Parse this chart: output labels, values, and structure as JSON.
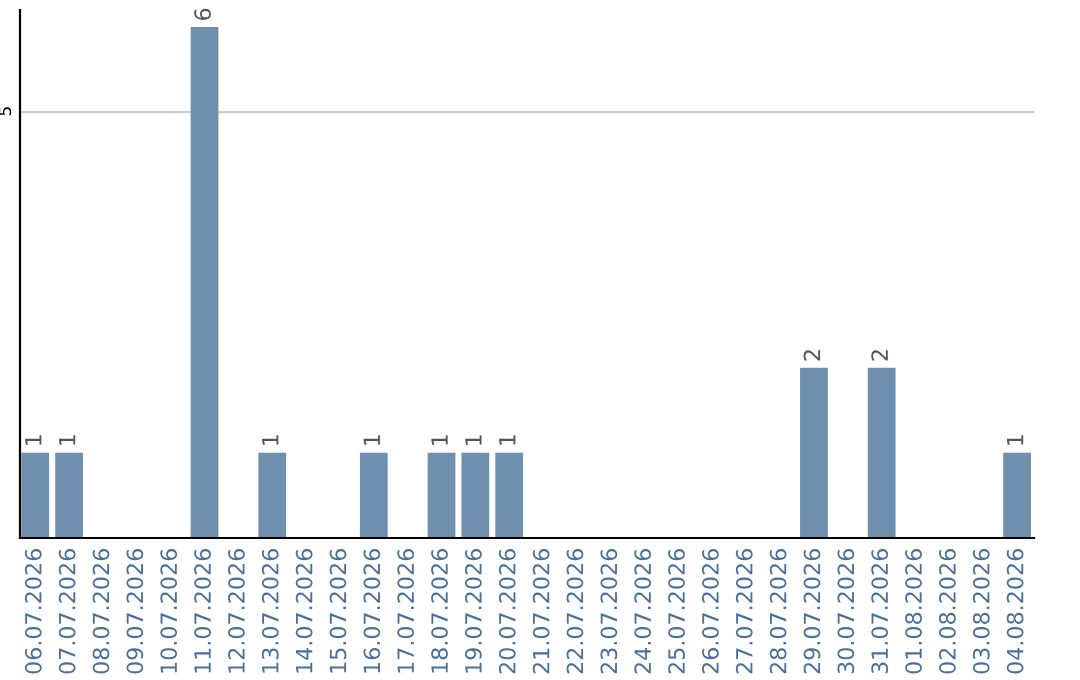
{
  "chart_data": {
    "type": "bar",
    "categories": [
      "06.07.2026",
      "07.07.2026",
      "08.07.2026",
      "09.07.2026",
      "10.07.2026",
      "11.07.2026",
      "12.07.2026",
      "13.07.2026",
      "14.07.2026",
      "15.07.2026",
      "16.07.2026",
      "17.07.2026",
      "18.07.2026",
      "19.07.2026",
      "20.07.2026",
      "21.07.2026",
      "22.07.2026",
      "23.07.2026",
      "24.07.2026",
      "25.07.2026",
      "26.07.2026",
      "27.07.2026",
      "28.07.2026",
      "29.07.2026",
      "30.07.2026",
      "31.07.2026",
      "01.08.2026",
      "02.08.2026",
      "03.08.2026",
      "04.08.2026"
    ],
    "values": [
      1,
      1,
      0,
      0,
      0,
      6,
      0,
      1,
      0,
      0,
      1,
      0,
      1,
      1,
      1,
      0,
      0,
      0,
      0,
      0,
      0,
      0,
      0,
      2,
      0,
      2,
      0,
      0,
      0,
      1
    ],
    "value_labels": [
      "1",
      "1",
      null,
      null,
      null,
      "6",
      null,
      "1",
      null,
      null,
      "1",
      null,
      "1",
      "1",
      "1",
      null,
      null,
      null,
      null,
      null,
      null,
      null,
      null,
      "2",
      null,
      "2",
      null,
      null,
      null,
      "1"
    ],
    "color": "#6f8fae",
    "ylim": [
      0,
      6.2
    ],
    "yticks": [
      5
    ],
    "grid": "y",
    "legend": false
  }
}
